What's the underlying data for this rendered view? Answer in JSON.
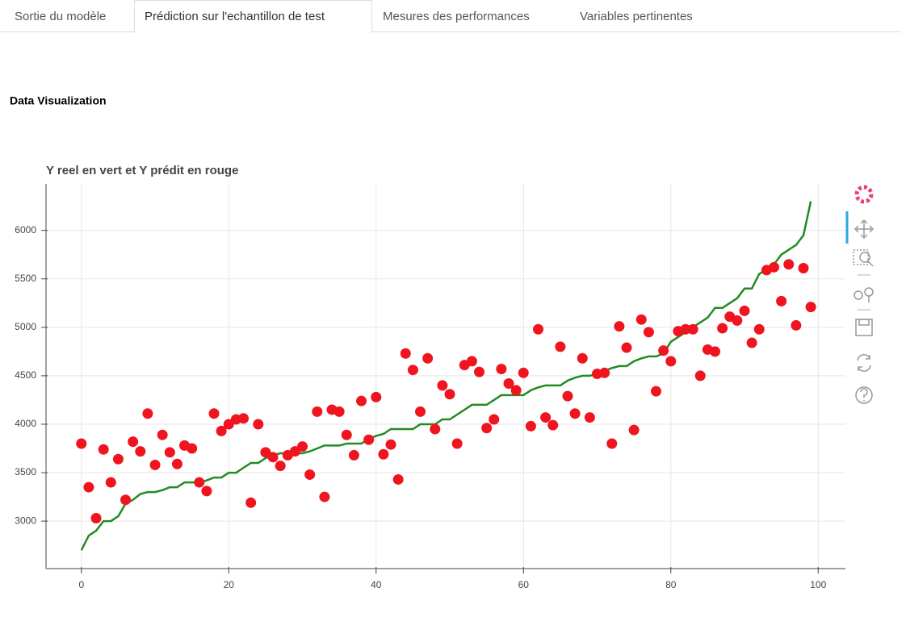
{
  "tabs": [
    "Sortie du modèle",
    "Prédiction sur l'echantillon de test",
    "Mesures des performances",
    "Variables pertinentes"
  ],
  "active_tab": 1,
  "heading": "Data Visualization",
  "chart_data": {
    "type": "line+scatter",
    "title": "Y reel en vert et Y prédit en rouge",
    "x": [
      0,
      1,
      2,
      3,
      4,
      5,
      6,
      7,
      8,
      9,
      10,
      11,
      12,
      13,
      14,
      15,
      16,
      17,
      18,
      19,
      20,
      21,
      22,
      23,
      24,
      25,
      26,
      27,
      28,
      29,
      30,
      31,
      32,
      33,
      34,
      35,
      36,
      37,
      38,
      39,
      40,
      41,
      42,
      43,
      44,
      45,
      46,
      47,
      48,
      49,
      50,
      51,
      52,
      53,
      54,
      55,
      56,
      57,
      58,
      59,
      60,
      61,
      62,
      63,
      64,
      65,
      66,
      67,
      68,
      69,
      70,
      71,
      72,
      73,
      74,
      75,
      76,
      77,
      78,
      79,
      80,
      81,
      82,
      83,
      84,
      85,
      86,
      87,
      88,
      89,
      90,
      91,
      92,
      93,
      94,
      95,
      96,
      97,
      98,
      99
    ],
    "series": [
      {
        "type": "line",
        "color": "#228b22",
        "values": [
          2700,
          2850,
          2900,
          3000,
          3000,
          3050,
          3180,
          3220,
          3280,
          3300,
          3300,
          3320,
          3350,
          3350,
          3400,
          3400,
          3400,
          3420,
          3450,
          3450,
          3500,
          3500,
          3550,
          3600,
          3600,
          3650,
          3680,
          3700,
          3700,
          3700,
          3700,
          3720,
          3750,
          3780,
          3780,
          3780,
          3800,
          3800,
          3800,
          3850,
          3880,
          3900,
          3950,
          3950,
          3950,
          3950,
          4000,
          4000,
          4000,
          4050,
          4050,
          4100,
          4150,
          4200,
          4200,
          4200,
          4250,
          4300,
          4300,
          4300,
          4300,
          4350,
          4380,
          4400,
          4400,
          4400,
          4450,
          4480,
          4500,
          4500,
          4520,
          4550,
          4580,
          4600,
          4600,
          4650,
          4680,
          4700,
          4700,
          4730,
          4850,
          4900,
          4950,
          5000,
          5050,
          5100,
          5200,
          5200,
          5250,
          5300,
          5400,
          5400,
          5550,
          5600,
          5650,
          5750,
          5800,
          5850,
          5950,
          6300
        ]
      },
      {
        "type": "scatter",
        "color": "#f0141e",
        "values": [
          3800,
          3350,
          3030,
          3740,
          3400,
          3640,
          3220,
          3820,
          3720,
          4110,
          3580,
          3890,
          3710,
          3590,
          3780,
          3750,
          3400,
          3310,
          4110,
          3930,
          4000,
          4050,
          4060,
          3190,
          4000,
          3710,
          3660,
          3570,
          3680,
          3720,
          3770,
          3480,
          4130,
          3250,
          4150,
          4130,
          3890,
          3680,
          4240,
          3840,
          4280,
          3690,
          3790,
          3430,
          4730,
          4560,
          4130,
          4680,
          3950,
          4400,
          4310,
          3800,
          4610,
          4650,
          4540,
          3960,
          4050,
          4570,
          4420,
          4350,
          4530,
          3980,
          4980,
          4070,
          3990,
          4800,
          4290,
          4110,
          4680,
          4070,
          4520,
          4530,
          3800,
          5010,
          4790,
          3940,
          5080,
          4950,
          4340,
          4760,
          4650,
          4960,
          4980,
          4980,
          4500,
          4770,
          4750,
          4990,
          5110,
          5070,
          5170,
          4840,
          4980,
          5590,
          5620,
          5270,
          5650,
          5020,
          5610,
          5210
        ]
      }
    ],
    "xlim": [
      -4.8,
      103.7
    ],
    "ylim": [
      2510,
      6480
    ],
    "xticks": [
      0,
      20,
      40,
      60,
      80,
      100
    ],
    "yticks": [
      3000,
      3500,
      4000,
      4500,
      5000,
      5500,
      6000
    ],
    "grid": true
  }
}
